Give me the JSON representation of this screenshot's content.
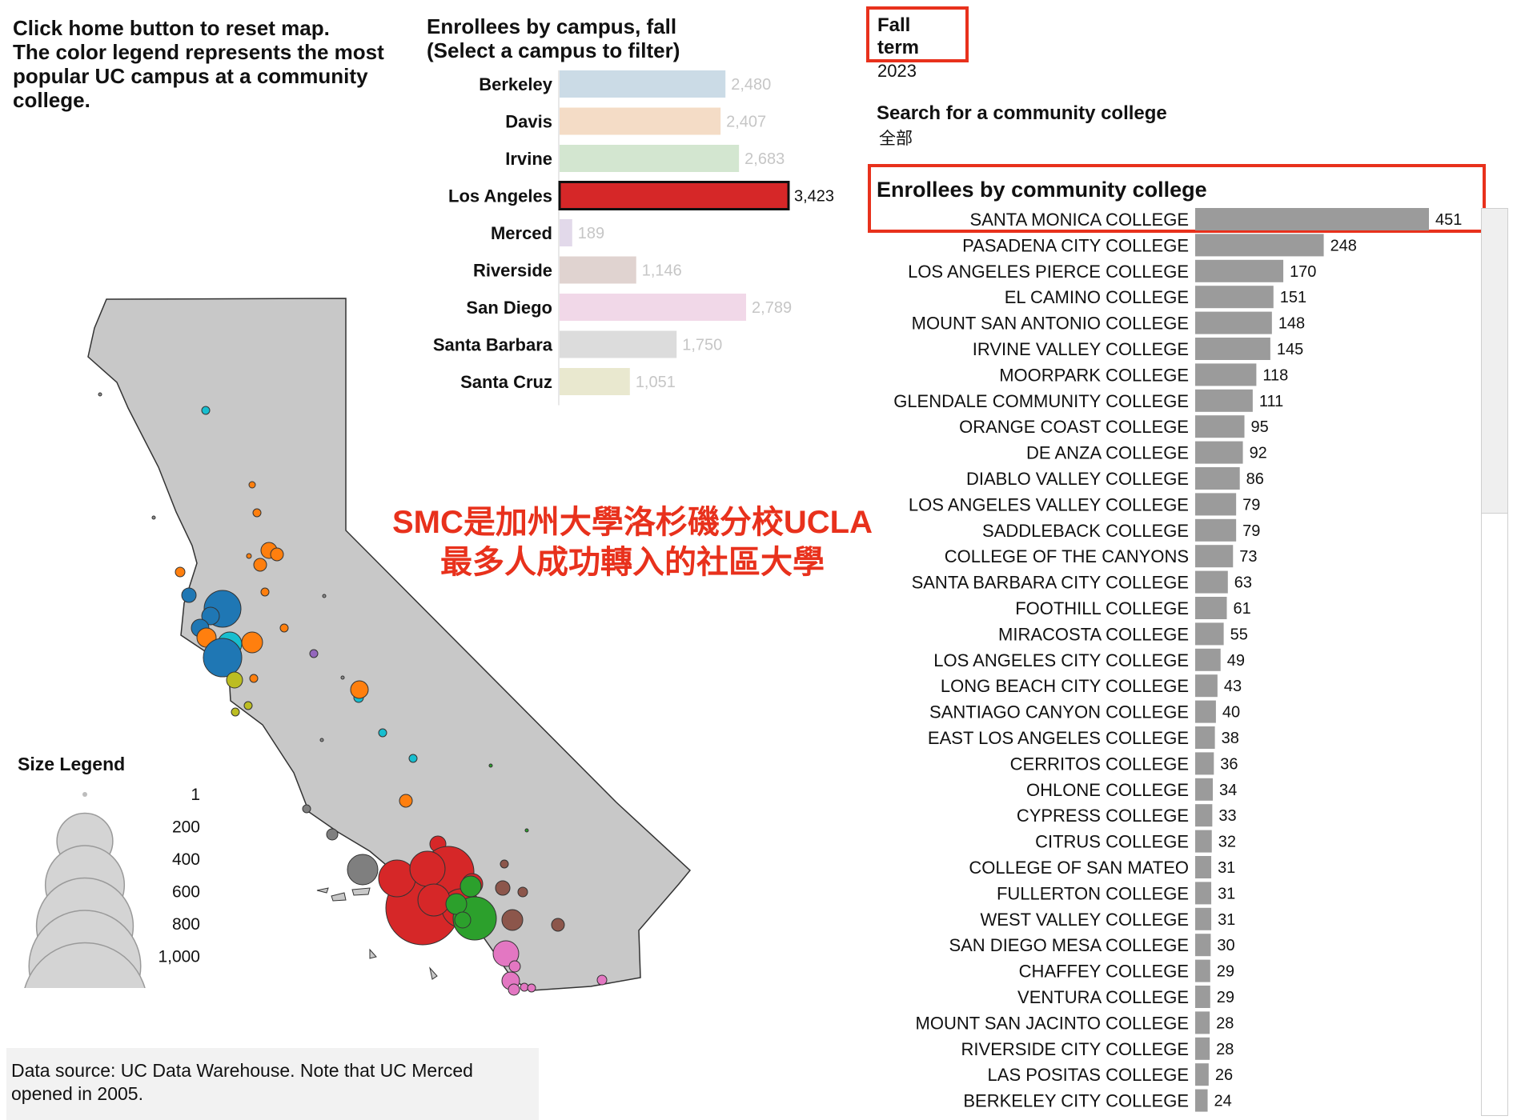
{
  "instructions": {
    "line1": "Click home button to reset map.",
    "line2": "The color legend represents the most popular UC campus at a community college."
  },
  "campus_chart_title": {
    "line1": "Enrollees by campus, fall",
    "line2": "(Select a campus to filter)"
  },
  "filter": {
    "term_label": "Fall term",
    "term_value": "2023",
    "search_label": "Search for a community college",
    "search_value": "全部"
  },
  "community_chart_title": "Enrollees by community college",
  "annotation": {
    "line1": "SMC是加州大學洛杉磯分校UCLA",
    "line2": "最多人成功轉入的社區大學"
  },
  "size_legend": {
    "title": "Size Legend",
    "values": [
      "1",
      "200",
      "400",
      "600",
      "800",
      "1,000"
    ]
  },
  "source_note": {
    "line1": "Data source: UC Data Warehouse. Note that UC Merced",
    "line2": "opened in 2005."
  },
  "colors": {
    "highlight": "#e8311c",
    "bar_gray": "#9b9b9b",
    "selected_bar": "#d62728",
    "map_fill": "#c8c8c8"
  },
  "chart_data": [
    {
      "type": "bar",
      "orientation": "horizontal",
      "title": "Enrollees by campus, fall (Select a campus to filter)",
      "categories": [
        "Berkeley",
        "Davis",
        "Irvine",
        "Los Angeles",
        "Merced",
        "Riverside",
        "San Diego",
        "Santa Barbara",
        "Santa Cruz"
      ],
      "values": [
        2480,
        2407,
        2683,
        3423,
        189,
        1146,
        2789,
        1750,
        1051
      ],
      "value_labels": [
        "2,480",
        "2,407",
        "2,683",
        "3,423",
        "189",
        "1,146",
        "2,789",
        "1,750",
        "1,051"
      ],
      "colors": [
        "#cbdbe6",
        "#f4dcc6",
        "#d3e6d0",
        "#d62728",
        "#e2d9ea",
        "#e0d3d0",
        "#f1d8e8",
        "#dcdcdc",
        "#e9e8cf"
      ],
      "selected": "Los Angeles",
      "xlim": [
        0,
        3423
      ]
    },
    {
      "type": "bar",
      "orientation": "horizontal",
      "title": "Enrollees by community college",
      "categories": [
        "SANTA MONICA COLLEGE",
        "PASADENA CITY COLLEGE",
        "LOS ANGELES PIERCE COLLEGE",
        "EL CAMINO COLLEGE",
        "MOUNT SAN ANTONIO COLLEGE",
        "IRVINE VALLEY COLLEGE",
        "MOORPARK COLLEGE",
        "GLENDALE COMMUNITY COLLEGE",
        "ORANGE COAST COLLEGE",
        "DE ANZA COLLEGE",
        "DIABLO VALLEY COLLEGE",
        "LOS ANGELES VALLEY COLLEGE",
        "SADDLEBACK COLLEGE",
        "COLLEGE OF THE CANYONS",
        "SANTA BARBARA CITY COLLEGE",
        "FOOTHILL COLLEGE",
        "MIRACOSTA COLLEGE",
        "LOS ANGELES CITY COLLEGE",
        "LONG BEACH CITY COLLEGE",
        "SANTIAGO CANYON COLLEGE",
        "EAST LOS ANGELES COLLEGE",
        "CERRITOS COLLEGE",
        "OHLONE COLLEGE",
        "CYPRESS COLLEGE",
        "CITRUS COLLEGE",
        "COLLEGE OF SAN MATEO",
        "FULLERTON COLLEGE",
        "WEST VALLEY COLLEGE",
        "SAN DIEGO MESA COLLEGE",
        "CHAFFEY COLLEGE",
        "VENTURA COLLEGE",
        "MOUNT SAN JACINTO COLLEGE",
        "RIVERSIDE CITY COLLEGE",
        "LAS POSITAS COLLEGE",
        "BERKELEY CITY COLLEGE"
      ],
      "values": [
        451,
        248,
        170,
        151,
        148,
        145,
        118,
        111,
        95,
        92,
        86,
        79,
        79,
        73,
        63,
        61,
        55,
        49,
        43,
        40,
        38,
        36,
        34,
        33,
        32,
        31,
        31,
        31,
        30,
        29,
        29,
        28,
        28,
        26,
        24
      ],
      "color": "#9b9b9b",
      "xlim": [
        0,
        451
      ]
    },
    {
      "type": "scatter",
      "title": "",
      "description": "California map; circle size = enrollees, color = most popular UC campus",
      "size_legend": [
        1,
        200,
        400,
        600,
        800,
        1000
      ],
      "color_key": {
        "Berkeley": "#1f77b4",
        "Davis": "#ff7f0e",
        "Irvine": "#2ca02c",
        "Los Angeles": "#d62728",
        "Merced": "#9467bd",
        "Riverside": "#8c564b",
        "San Diego": "#e377c2",
        "Santa Barbara": "#7f7f7f",
        "Santa Cruz": "#bcbd22",
        "Other": "#17becf"
      }
    }
  ]
}
